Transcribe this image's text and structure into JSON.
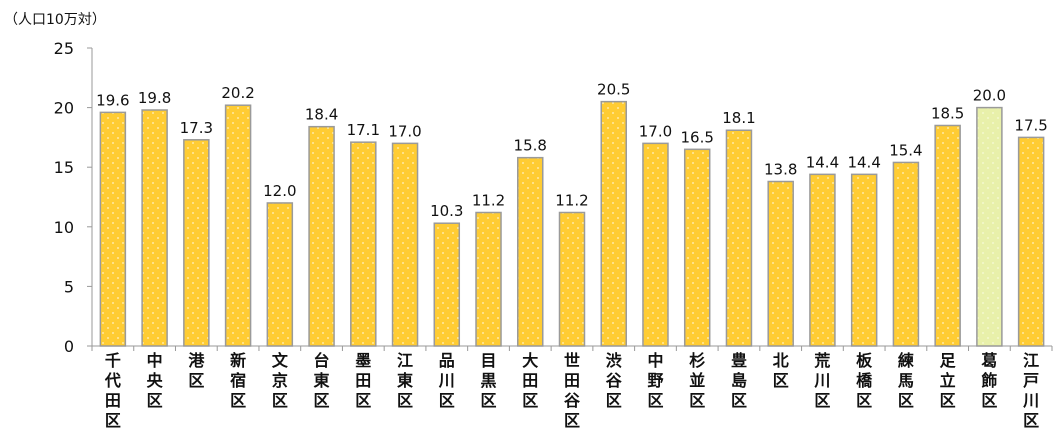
{
  "chart_data": {
    "type": "bar",
    "title": "",
    "unit_label": "（人口10万対）",
    "xlabel": "",
    "ylabel": "",
    "ylim": [
      0,
      25
    ],
    "yticks": [
      0,
      5,
      10,
      15,
      20,
      25
    ],
    "grid": false,
    "legend": "none",
    "categories": [
      "千代田区",
      "中央区",
      "港区",
      "新宿区",
      "文京区",
      "台東区",
      "墨田区",
      "江東区",
      "品川区",
      "目黒区",
      "大田区",
      "世田谷区",
      "渋谷区",
      "中野区",
      "杉並区",
      "豊島区",
      "北区",
      "荒川区",
      "板橋区",
      "練馬区",
      "足立区",
      "葛飾区",
      "江戸川区"
    ],
    "values": [
      19.6,
      19.8,
      17.3,
      20.2,
      12.0,
      18.4,
      17.1,
      17.0,
      10.3,
      11.2,
      15.8,
      11.2,
      20.5,
      17.0,
      16.5,
      18.1,
      13.8,
      14.4,
      14.4,
      15.4,
      18.5,
      20.0,
      17.5
    ],
    "value_labels": [
      "19.6",
      "19.8",
      "17.3",
      "20.2",
      "12.0",
      "18.4",
      "17.1",
      "17.0",
      "10.3",
      "11.2",
      "15.8",
      "11.2",
      "20.5",
      "17.0",
      "16.5",
      "18.1",
      "13.8",
      "14.4",
      "14.4",
      "15.4",
      "18.5",
      "20.0",
      "17.5"
    ],
    "highlight_index": 21,
    "colors": {
      "bar_fill": "#FFCC33",
      "bar_highlight_fill": "#E8F0AA",
      "bar_stroke": "#9A9A9A",
      "axis": "#999999"
    }
  }
}
